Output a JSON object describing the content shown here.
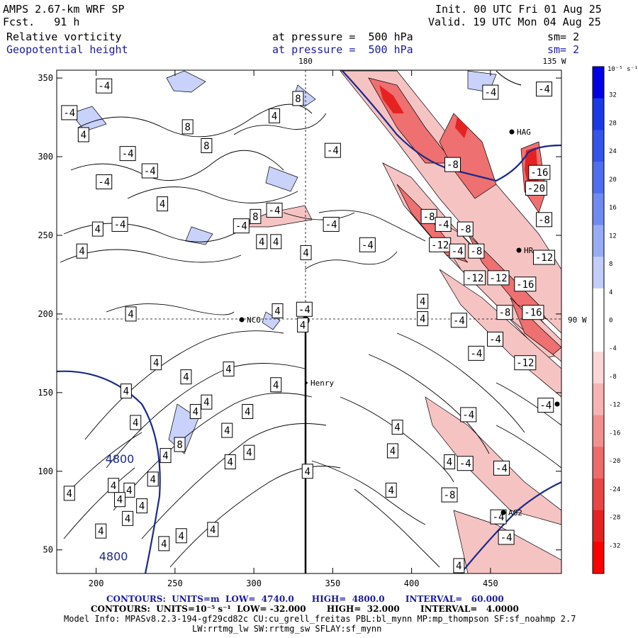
{
  "header": {
    "model": "AMPS 2.67-km WRF SP",
    "fcst": "Fcst.   91 h",
    "init": "Init. 00 UTC Fri 01 Aug 25",
    "valid": "Valid. 19 UTC Mon 04 Aug 25",
    "field1": "Relative vorticity",
    "field2": "Geopotential height",
    "level1": "at pressure =  500 hPa",
    "level2": "at pressure =  500 hPa",
    "sm1": "sm= 2",
    "sm2": "sm= 2"
  },
  "map_labels": {
    "lon180": "180",
    "lon135w": "135 W",
    "lon90w": "90 W",
    "stations": [
      "NCO",
      "Henry",
      "HAG",
      "HR",
      "AG2"
    ]
  },
  "colorbar": {
    "title": "10⁻⁵ s⁻¹",
    "levels": [
      32,
      28,
      24,
      20,
      16,
      12,
      8,
      4,
      0,
      -4,
      -8,
      -12,
      -16,
      -20,
      -24,
      -28,
      -32
    ],
    "positive_colors": [
      "#0000e6",
      "#1a3ae8",
      "#3355eb",
      "#4d6eee",
      "#6f8af1",
      "#98acf5",
      "#c3cdf9",
      "#ffffff"
    ],
    "negative_colors": [
      "#ffffff",
      "#fbd6d6",
      "#f7b3b3",
      "#f29090",
      "#ee6b6b",
      "#ea4646",
      "#e52222",
      "#ff0000"
    ]
  },
  "chart_data": {
    "type": "contour_map",
    "xlim": [
      175,
      495
    ],
    "ylim": [
      35,
      355
    ],
    "x_ticks": [
      200,
      250,
      300,
      350,
      400,
      450
    ],
    "y_ticks": [
      50,
      100,
      150,
      200,
      250,
      300,
      350
    ],
    "height_contour_label": "4800",
    "vorticity_labels": [
      {
        "x": 205,
        "y": 345,
        "v": "-4"
      },
      {
        "x": 183,
        "y": 328,
        "v": "-4"
      },
      {
        "x": 192,
        "y": 314,
        "v": "4"
      },
      {
        "x": 220,
        "y": 302,
        "v": "-4"
      },
      {
        "x": 205,
        "y": 284,
        "v": "-4"
      },
      {
        "x": 234,
        "y": 291,
        "v": "-4"
      },
      {
        "x": 258,
        "y": 319,
        "v": "8"
      },
      {
        "x": 270,
        "y": 307,
        "v": "8"
      },
      {
        "x": 313,
        "y": 326,
        "v": "4"
      },
      {
        "x": 328,
        "y": 337,
        "v": "8"
      },
      {
        "x": 350,
        "y": 304,
        "v": "-4"
      },
      {
        "x": 242,
        "y": 270,
        "v": "4"
      },
      {
        "x": 215,
        "y": 257,
        "v": "-4"
      },
      {
        "x": 201,
        "y": 254,
        "v": "4"
      },
      {
        "x": 191,
        "y": 240,
        "v": "4"
      },
      {
        "x": 301,
        "y": 262,
        "v": "8"
      },
      {
        "x": 313,
        "y": 266,
        "v": "-4"
      },
      {
        "x": 292,
        "y": 256,
        "v": "-4"
      },
      {
        "x": 305,
        "y": 246,
        "v": "4"
      },
      {
        "x": 314,
        "y": 246,
        "v": "4"
      },
      {
        "x": 333,
        "y": 239,
        "v": "4"
      },
      {
        "x": 349,
        "y": 257,
        "v": "-4"
      },
      {
        "x": 372,
        "y": 244,
        "v": "-4"
      },
      {
        "x": 222,
        "y": 200,
        "v": "4"
      },
      {
        "x": 315,
        "y": 202,
        "v": "4"
      },
      {
        "x": 332,
        "y": 203,
        "v": "-4"
      },
      {
        "x": 331,
        "y": 193,
        "v": "4"
      },
      {
        "x": 407,
        "y": 208,
        "v": "4"
      },
      {
        "x": 407,
        "y": 197,
        "v": "4"
      },
      {
        "x": 411,
        "y": 262,
        "v": "-8"
      },
      {
        "x": 420,
        "y": 257,
        "v": "-4"
      },
      {
        "x": 418,
        "y": 244,
        "v": "-12"
      },
      {
        "x": 429,
        "y": 240,
        "v": "-4"
      },
      {
        "x": 434,
        "y": 254,
        "v": "-8"
      },
      {
        "x": 441,
        "y": 240,
        "v": "-8"
      },
      {
        "x": 440,
        "y": 223,
        "v": "-12"
      },
      {
        "x": 455,
        "y": 223,
        "v": "-12"
      },
      {
        "x": 472,
        "y": 219,
        "v": "-16"
      },
      {
        "x": 477,
        "y": 201,
        "v": "-16"
      },
      {
        "x": 459,
        "y": 201,
        "v": "-8"
      },
      {
        "x": 430,
        "y": 196,
        "v": "-4"
      },
      {
        "x": 453,
        "y": 184,
        "v": "-4"
      },
      {
        "x": 441,
        "y": 175,
        "v": "-4"
      },
      {
        "x": 484,
        "y": 236,
        "v": "-12"
      },
      {
        "x": 484,
        "y": 260,
        "v": "-8"
      },
      {
        "x": 479,
        "y": 280,
        "v": "-20"
      },
      {
        "x": 481,
        "y": 290,
        "v": "-16"
      },
      {
        "x": 426,
        "y": 295,
        "v": "-8"
      },
      {
        "x": 450,
        "y": 341,
        "v": "-4"
      },
      {
        "x": 484,
        "y": 343,
        "v": "-4"
      },
      {
        "x": 472,
        "y": 169,
        "v": "-12"
      },
      {
        "x": 485,
        "y": 142,
        "v": "-4"
      },
      {
        "x": 436,
        "y": 136,
        "v": "-4"
      },
      {
        "x": 391,
        "y": 128,
        "v": "4"
      },
      {
        "x": 238,
        "y": 169,
        "v": "4"
      },
      {
        "x": 257,
        "y": 160,
        "v": "4"
      },
      {
        "x": 284,
        "y": 165,
        "v": "4"
      },
      {
        "x": 314,
        "y": 155,
        "v": "4"
      },
      {
        "x": 270,
        "y": 144,
        "v": "4"
      },
      {
        "x": 263,
        "y": 138,
        "v": "4"
      },
      {
        "x": 296,
        "y": 138,
        "v": "4"
      },
      {
        "x": 283,
        "y": 126,
        "v": "4"
      },
      {
        "x": 253,
        "y": 117,
        "v": "8"
      },
      {
        "x": 219,
        "y": 151,
        "v": "4"
      },
      {
        "x": 225,
        "y": 131,
        "v": "4"
      },
      {
        "x": 244,
        "y": 110,
        "v": "4"
      },
      {
        "x": 285,
        "y": 106,
        "v": "4"
      },
      {
        "x": 297,
        "y": 112,
        "v": "4"
      },
      {
        "x": 334,
        "y": 100,
        "v": "4"
      },
      {
        "x": 388,
        "y": 113,
        "v": "4"
      },
      {
        "x": 424,
        "y": 106,
        "v": "4"
      },
      {
        "x": 434,
        "y": 105,
        "v": "-4"
      },
      {
        "x": 457,
        "y": 102,
        "v": "-4"
      },
      {
        "x": 387,
        "y": 88,
        "v": "4"
      },
      {
        "x": 424,
        "y": 85,
        "v": "-8"
      },
      {
        "x": 455,
        "y": 71,
        "v": "-4"
      },
      {
        "x": 460,
        "y": 58,
        "v": "-4"
      },
      {
        "x": 430,
        "y": 40,
        "v": "4"
      },
      {
        "x": 183,
        "y": 86,
        "v": "4"
      },
      {
        "x": 211,
        "y": 91,
        "v": "4"
      },
      {
        "x": 221,
        "y": 88,
        "v": "4"
      },
      {
        "x": 236,
        "y": 95,
        "v": "4"
      },
      {
        "x": 229,
        "y": 78,
        "v": "4"
      },
      {
        "x": 215,
        "y": 82,
        "v": "4"
      },
      {
        "x": 220,
        "y": 70,
        "v": "4"
      },
      {
        "x": 203,
        "y": 62,
        "v": "4"
      },
      {
        "x": 274,
        "y": 63,
        "v": "4"
      },
      {
        "x": 243,
        "y": 54,
        "v": "4"
      },
      {
        "x": 254,
        "y": 59,
        "v": "4"
      }
    ],
    "height_contours_label_positions": [
      {
        "x": 215,
        "y": 108
      },
      {
        "x": 211,
        "y": 46
      }
    ]
  },
  "footer": {
    "line1": "CONTOURS:  UNITS=m  LOW=  4740.0      HIGH=  4800.0       INTERVAL=   60.000",
    "line2": "CONTOURS:  UNITS=10⁻⁵ s⁻¹  LOW= -32.000       HIGH=  32.000       INTERVAL=   4.0000",
    "line3": "Model Info: MPASv8.2.3-194-gf29cd82c CU:cu_grell_freitas PBL:bl_mynn MP:mp_thompson SF:sf_noahmp 2.7",
    "line4": "LW:rrtmg_lw SW:rrtmg_sw SFLAY:sf_mynn"
  }
}
